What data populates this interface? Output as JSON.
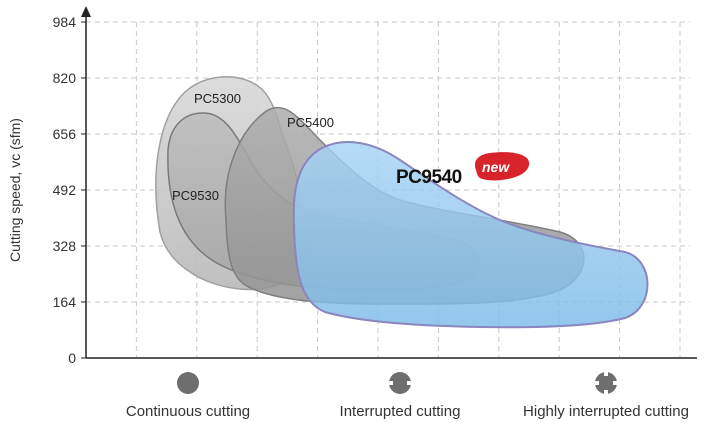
{
  "chart_data": {
    "type": "area",
    "title": "",
    "ylabel": "Cutting speed, vc (sfm)",
    "xlabel": "",
    "ylim": [
      0,
      984
    ],
    "yticks": [
      0,
      164,
      328,
      492,
      656,
      820,
      984
    ],
    "categories": [
      "Continuous cutting",
      "Interrupted cutting",
      "Highly interrupted cutting"
    ],
    "grid": true,
    "series": [
      {
        "name": "PC5300",
        "color": "#c4c4c4",
        "approx_speed_range": [
          150,
          820
        ],
        "application": "Continuous to interrupted cutting"
      },
      {
        "name": "PC9530",
        "color": "#aaaaaa",
        "approx_speed_range": [
          210,
          710
        ],
        "application": "Continuous to interrupted cutting"
      },
      {
        "name": "PC5400",
        "color": "#9a9a9a",
        "approx_speed_range": [
          140,
          650
        ],
        "application": "Interrupted cutting"
      },
      {
        "name": "PC9540",
        "color": "#8ec5ef",
        "approx_speed_range": [
          90,
          640
        ],
        "application": "Interrupted to highly interrupted cutting",
        "badge": "new"
      }
    ]
  },
  "categories": [
    {
      "label": "Continuous cutting",
      "icon": "solid-circle-icon"
    },
    {
      "label": "Interrupted cutting",
      "icon": "interrupted-circle-icon"
    },
    {
      "label": "Highly interrupted cutting",
      "icon": "highly-interrupted-circle-icon"
    }
  ],
  "colors": {
    "accent": "#d8232a",
    "highlight_fill": "#8ec5ef",
    "grid": "#c8c8c8"
  }
}
